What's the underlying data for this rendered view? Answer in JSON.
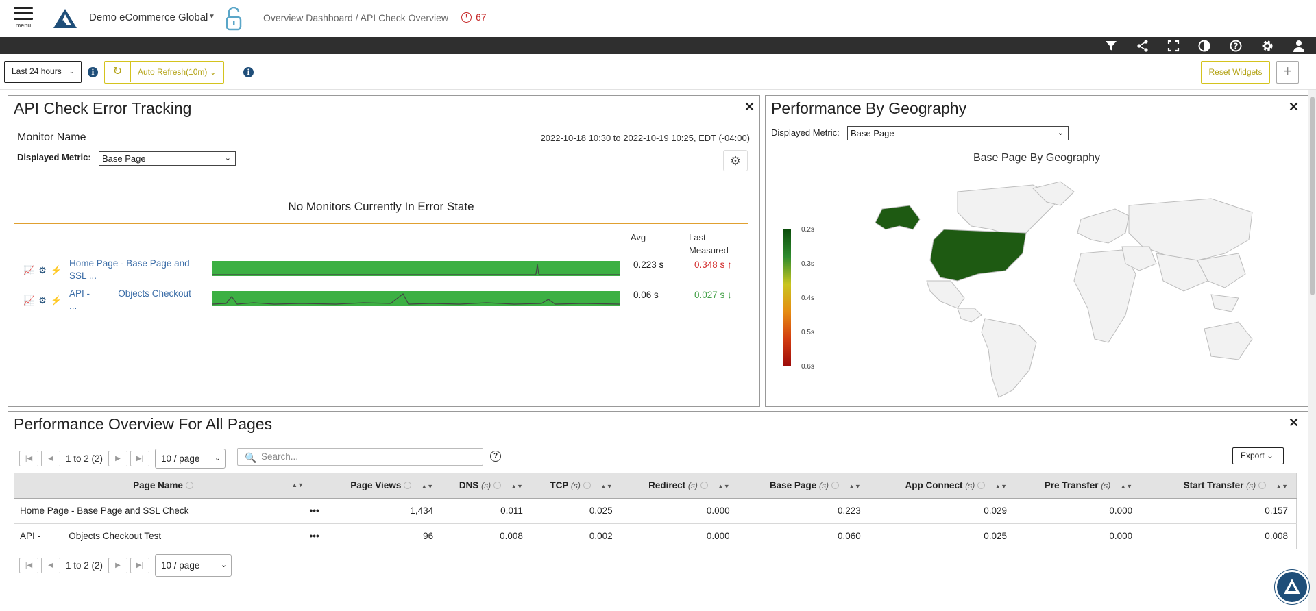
{
  "header": {
    "menu_label": "menu",
    "company": "Demo eCommerce Global",
    "breadcrumb": "Overview Dashboard / API Check Overview",
    "alert_count": "67"
  },
  "toolbar": {
    "time_range": "Last 24 hours",
    "auto_refresh": "Auto Refresh(10m)",
    "reset_widgets": "Reset Widgets",
    "add_label": "+"
  },
  "error_tracking": {
    "title": "API Check Error Tracking",
    "monitor_name_label": "Monitor Name",
    "date_range": "2022-10-18 10:30 to 2022-10-19 10:25, EDT (-04:00)",
    "metric_label": "Displayed Metric:",
    "metric_value": "Base Page",
    "error_message": "No Monitors Currently In Error State",
    "col_avg": "Avg",
    "col_last_1": "Last",
    "col_last_2": "Measured",
    "monitors": [
      {
        "name_1": "Home Page - Base Page and",
        "name_2": "SSL ...",
        "avg": "0.223 s",
        "last": "0.348 s",
        "trend": "up",
        "color": "#d32f2f"
      },
      {
        "name_1": "API -           Objects Checkout",
        "name_2": "...",
        "avg": "0.06 s",
        "last": "0.027 s",
        "trend": "down",
        "color": "#43a047"
      }
    ]
  },
  "geography": {
    "title": "Performance By Geography",
    "metric_label": "Displayed Metric:",
    "metric_value": "Base Page",
    "map_title": "Base Page By Geography",
    "legend": [
      "0.2s",
      "0.3s",
      "0.4s",
      "0.5s",
      "0.6s"
    ]
  },
  "overview": {
    "title": "Performance Overview For All Pages",
    "pager_text": "1 to 2 (2)",
    "per_page": "10 / page",
    "search_placeholder": "Search...",
    "export_label": "Export",
    "columns": [
      {
        "label": "Page Name",
        "unit": ""
      },
      {
        "label": "Page Views",
        "unit": ""
      },
      {
        "label": "DNS",
        "unit": "(s)"
      },
      {
        "label": "TCP",
        "unit": "(s)"
      },
      {
        "label": "Redirect",
        "unit": "(s)"
      },
      {
        "label": "Base Page",
        "unit": "(s)"
      },
      {
        "label": "App Connect",
        "unit": "(s)"
      },
      {
        "label": "Pre Transfer",
        "unit": "(s)"
      },
      {
        "label": "Start Transfer",
        "unit": "(s)"
      }
    ],
    "rows": [
      {
        "name": "Home Page - Base Page and SSL Check",
        "views": "1,434",
        "dns": "0.011",
        "tcp": "0.025",
        "redirect": "0.000",
        "base": "0.223",
        "app": "0.029",
        "pre": "0.000",
        "start": "0.157"
      },
      {
        "name": "API -           Objects Checkout Test",
        "views": "96",
        "dns": "0.008",
        "tcp": "0.002",
        "redirect": "0.000",
        "base": "0.060",
        "app": "0.025",
        "pre": "0.000",
        "start": "0.008"
      }
    ]
  }
}
